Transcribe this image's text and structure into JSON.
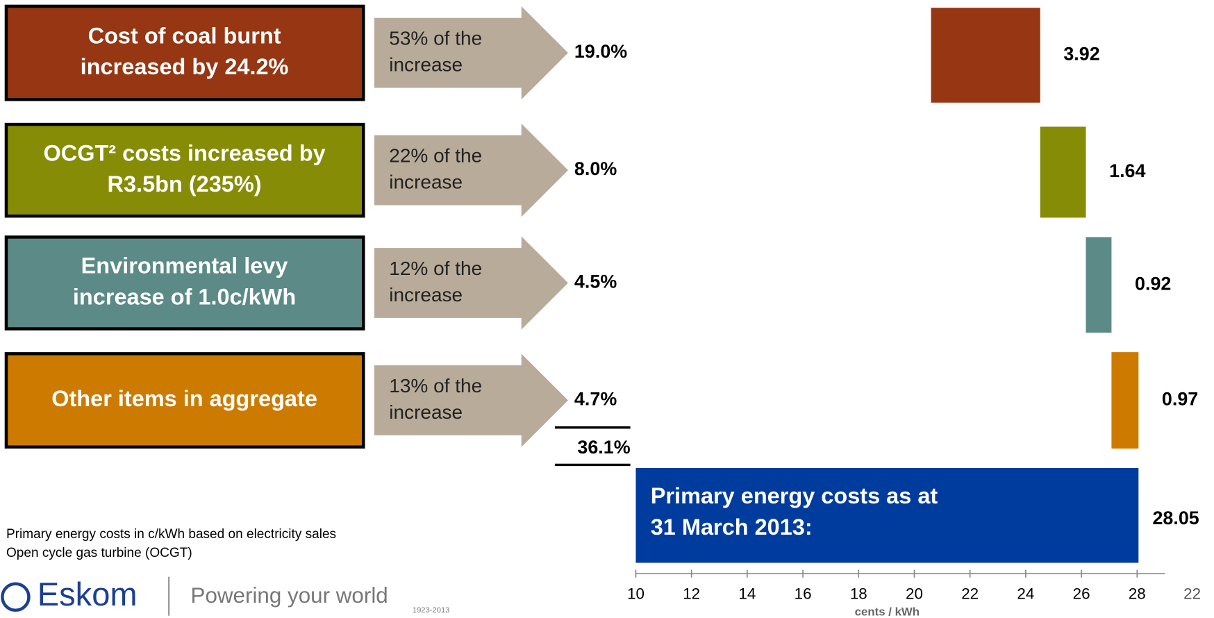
{
  "chart_data": {
    "type": "waterfall",
    "steps": [
      {
        "label": [
          "Cost of coal burnt",
          "increased by 24.2%"
        ],
        "share": [
          "53% of the",
          "increase"
        ],
        "percent": "19.0%",
        "value": 3.92,
        "color": "#963612"
      },
      {
        "label": [
          "OCGT² costs increased by",
          "R3.5bn (235%)"
        ],
        "share": [
          "22% of the",
          "increase"
        ],
        "percent": "8.0%",
        "value": 1.64,
        "color": "#868c05"
      },
      {
        "label": [
          "Environmental levy",
          "increase of 1.0c/kWh"
        ],
        "share": [
          "12% of the",
          "increase"
        ],
        "percent": "4.5%",
        "value": 0.92,
        "color": "#5b8a87"
      },
      {
        "label": [
          "Other items in aggregate"
        ],
        "share": [
          "13% of the",
          "increase"
        ],
        "percent": "4.7%",
        "value": 0.97,
        "color": "#cc7a00"
      }
    ],
    "total": {
      "label": [
        "Primary energy costs as at",
        "31 March 2013:"
      ],
      "percent": "36.1%",
      "value": 28.05,
      "color": "#003c9e"
    },
    "xlabel": "cents / kWh",
    "xlim": [
      10,
      29
    ],
    "xticks": [
      10,
      12,
      14,
      16,
      18,
      20,
      22,
      24,
      26,
      28
    ]
  },
  "footnotes": [
    "Primary energy costs in c/kWh based on electricity sales",
    "Open cycle gas turbine (OCGT)"
  ],
  "logo": {
    "brand": "Eskom",
    "tagline": "Powering your world",
    "years": "1923-2013"
  },
  "page_number": "22"
}
